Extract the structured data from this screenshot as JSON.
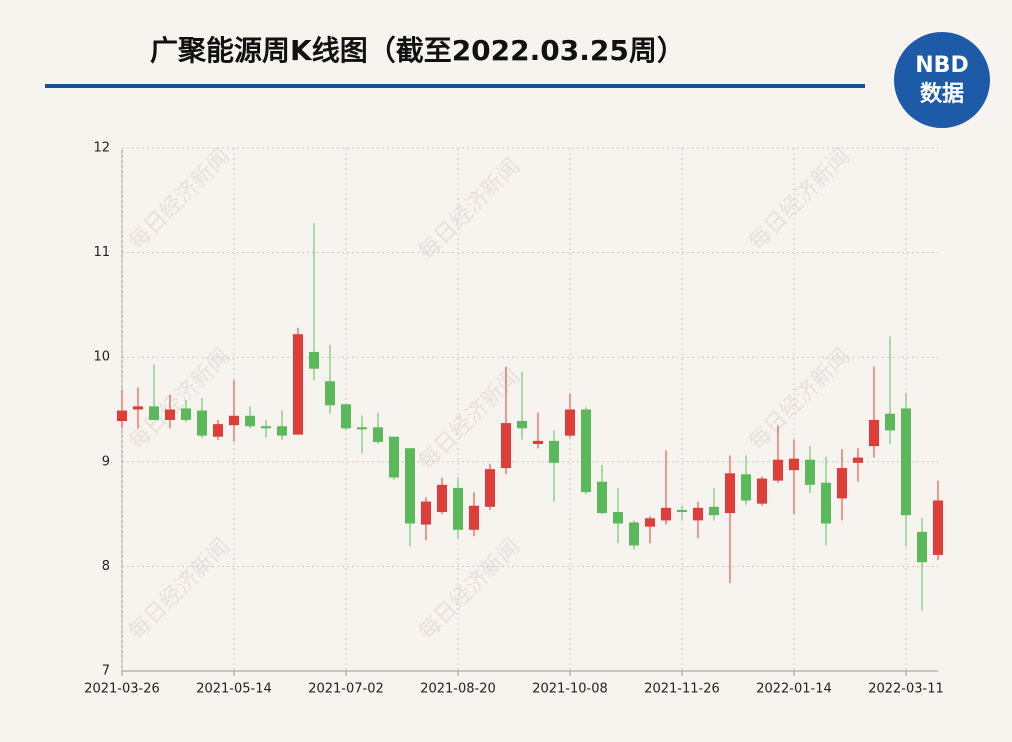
{
  "chart_data": {
    "type": "candlestick",
    "title": "广聚能源周K线图（截至2022.03.25周）",
    "logo": {
      "top": "NBD",
      "bottom": "数据"
    },
    "watermark": "每日经济新闻",
    "categories": [
      "2021-03-26",
      null,
      null,
      null,
      null,
      null,
      null,
      "2021-05-14",
      null,
      null,
      null,
      null,
      null,
      null,
      "2021-07-02",
      null,
      null,
      null,
      null,
      null,
      null,
      "2021-08-20",
      null,
      null,
      null,
      null,
      null,
      null,
      "2021-10-08",
      null,
      null,
      null,
      null,
      null,
      null,
      "2021-11-26",
      null,
      null,
      null,
      null,
      null,
      null,
      "2022-01-14",
      null,
      null,
      null,
      null,
      null,
      null,
      "2022-03-11",
      null,
      null
    ],
    "open": [
      9.39,
      9.5,
      9.53,
      9.4,
      9.51,
      9.49,
      9.24,
      9.35,
      9.44,
      9.34,
      9.34,
      9.26,
      10.05,
      9.77,
      9.55,
      9.33,
      9.33,
      9.24,
      9.13,
      8.4,
      8.52,
      8.75,
      8.35,
      8.57,
      8.94,
      9.39,
      9.17,
      9.2,
      9.25,
      9.5,
      8.81,
      8.52,
      8.42,
      8.38,
      8.44,
      8.54,
      8.44,
      8.57,
      8.51,
      8.88,
      8.6,
      8.82,
      8.92,
      9.02,
      8.8,
      8.65,
      8.99,
      9.15,
      9.46,
      9.51,
      8.33,
      8.11
    ],
    "high": [
      9.69,
      9.71,
      9.93,
      9.64,
      9.59,
      9.61,
      9.4,
      9.78,
      9.53,
      9.4,
      9.49,
      10.28,
      11.28,
      10.12,
      9.56,
      9.44,
      9.47,
      9.24,
      9.13,
      8.66,
      8.85,
      8.85,
      8.71,
      8.98,
      9.91,
      9.86,
      9.47,
      9.3,
      9.65,
      9.52,
      8.97,
      8.75,
      8.44,
      8.48,
      9.11,
      8.58,
      8.62,
      8.75,
      9.06,
      9.06,
      8.86,
      9.35,
      9.21,
      9.15,
      9.05,
      9.12,
      9.13,
      9.91,
      10.2,
      9.66,
      8.46,
      8.82
    ],
    "low": [
      9.32,
      9.32,
      9.4,
      9.32,
      9.38,
      9.23,
      9.21,
      9.19,
      9.32,
      9.23,
      9.21,
      9.26,
      9.78,
      9.46,
      9.3,
      9.08,
      9.17,
      8.83,
      8.19,
      8.25,
      8.5,
      8.27,
      8.29,
      8.54,
      8.88,
      9.21,
      9.13,
      8.62,
      9.23,
      8.69,
      8.5,
      8.22,
      8.16,
      8.22,
      8.4,
      8.44,
      8.27,
      8.44,
      7.84,
      8.59,
      8.58,
      8.8,
      8.5,
      8.7,
      8.2,
      8.44,
      8.81,
      9.04,
      9.17,
      8.19,
      7.58,
      8.06
    ],
    "close": [
      9.49,
      9.53,
      9.4,
      9.5,
      9.4,
      9.25,
      9.36,
      9.44,
      9.34,
      9.32,
      9.25,
      10.22,
      9.89,
      9.54,
      9.32,
      9.31,
      9.19,
      8.85,
      8.41,
      8.62,
      8.78,
      8.35,
      8.58,
      8.93,
      9.37,
      9.32,
      9.2,
      8.99,
      9.5,
      8.71,
      8.51,
      8.41,
      8.2,
      8.46,
      8.56,
      8.52,
      8.56,
      8.49,
      8.89,
      8.63,
      8.84,
      9.02,
      9.03,
      8.78,
      8.41,
      8.94,
      9.04,
      9.4,
      9.3,
      8.49,
      8.04,
      8.63
    ],
    "up_color": "#e03c3a",
    "down_color": "#5cb85c",
    "ylim": [
      7,
      12
    ],
    "yticks": [
      7,
      8,
      9,
      10,
      11,
      12
    ],
    "grid": true
  }
}
